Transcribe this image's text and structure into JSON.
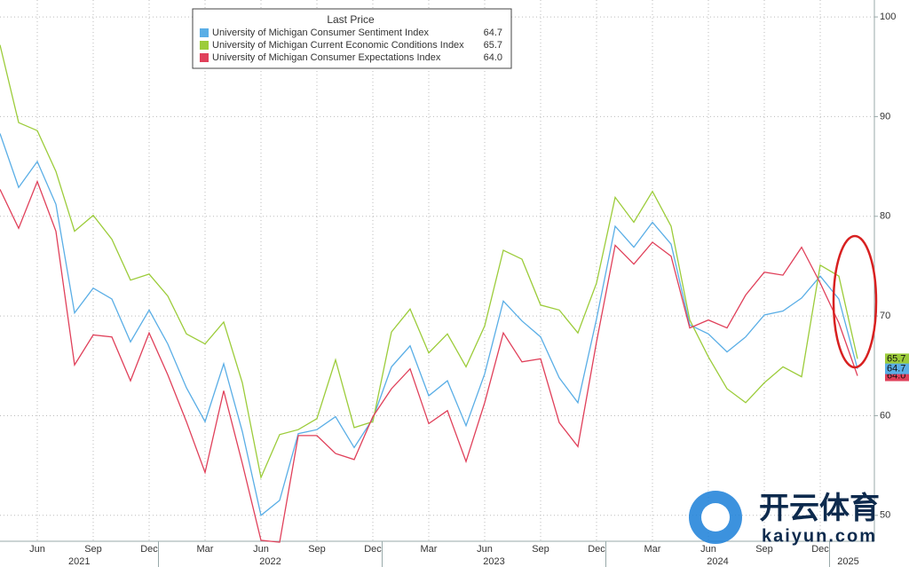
{
  "chart_data": {
    "type": "line",
    "legend": {
      "title": "Last Price",
      "position": "top"
    },
    "x": [
      "2021-04",
      "2021-05",
      "2021-06",
      "2021-07",
      "2021-08",
      "2021-09",
      "2021-10",
      "2021-11",
      "2021-12",
      "2022-01",
      "2022-02",
      "2022-03",
      "2022-04",
      "2022-05",
      "2022-06",
      "2022-07",
      "2022-08",
      "2022-09",
      "2022-10",
      "2022-11",
      "2022-12",
      "2023-01",
      "2023-02",
      "2023-03",
      "2023-04",
      "2023-05",
      "2023-06",
      "2023-07",
      "2023-08",
      "2023-09",
      "2023-10",
      "2023-11",
      "2023-12",
      "2024-01",
      "2024-02",
      "2024-03",
      "2024-04",
      "2024-05",
      "2024-06",
      "2024-07",
      "2024-08",
      "2024-09",
      "2024-10",
      "2024-11",
      "2024-12",
      "2025-01",
      "2025-02"
    ],
    "xticks": [
      {
        "value": "2021-06",
        "label": "Jun"
      },
      {
        "value": "2021-09",
        "label": "Sep"
      },
      {
        "value": "2021-12",
        "label": "Dec"
      },
      {
        "value": "2022-03",
        "label": "Mar"
      },
      {
        "value": "2022-06",
        "label": "Jun"
      },
      {
        "value": "2022-09",
        "label": "Sep"
      },
      {
        "value": "2022-12",
        "label": "Dec"
      },
      {
        "value": "2023-03",
        "label": "Mar"
      },
      {
        "value": "2023-06",
        "label": "Jun"
      },
      {
        "value": "2023-09",
        "label": "Sep"
      },
      {
        "value": "2023-12",
        "label": "Dec"
      },
      {
        "value": "2024-03",
        "label": "Mar"
      },
      {
        "value": "2024-06",
        "label": "Jun"
      },
      {
        "value": "2024-09",
        "label": "Sep"
      },
      {
        "value": "2024-12",
        "label": "Dec"
      }
    ],
    "year_ticks": [
      "2021",
      "2022",
      "2023",
      "2024",
      "2025"
    ],
    "ylim": [
      47.4,
      101.7
    ],
    "yticks": [
      50,
      60,
      70,
      80,
      90,
      100
    ],
    "y_axis_side": "right",
    "grid": true,
    "series": [
      {
        "name": "University of Michigan Consumer Sentiment Index",
        "color": "#5aaee6",
        "last_price": {
          "value": 64.7,
          "label": "64.7"
        },
        "values": [
          88.3,
          82.9,
          85.5,
          81.2,
          70.3,
          72.8,
          71.7,
          67.4,
          70.6,
          67.2,
          62.8,
          59.4,
          65.2,
          58.4,
          50.0,
          51.5,
          58.2,
          58.6,
          59.9,
          56.8,
          59.7,
          64.9,
          67.0,
          62.0,
          63.5,
          59.0,
          64.2,
          71.5,
          69.5,
          67.9,
          63.8,
          61.3,
          69.7,
          79.0,
          76.9,
          79.4,
          77.2,
          69.1,
          68.2,
          66.4,
          67.9,
          70.1,
          70.5,
          71.8,
          74.0,
          71.7,
          64.7
        ]
      },
      {
        "name": "University of Michigan Current Economic Conditions Index",
        "color": "#9ccc3a",
        "last_price": {
          "value": 65.7,
          "label": "65.7"
        },
        "values": [
          97.2,
          89.4,
          88.6,
          84.5,
          78.5,
          80.1,
          77.7,
          73.6,
          74.2,
          72.0,
          68.2,
          67.2,
          69.4,
          63.3,
          53.8,
          58.1,
          58.6,
          59.7,
          65.6,
          58.8,
          59.4,
          68.4,
          70.7,
          66.3,
          68.2,
          64.9,
          69.0,
          76.6,
          75.7,
          71.1,
          70.6,
          68.3,
          73.3,
          81.9,
          79.4,
          82.5,
          79.0,
          69.6,
          65.9,
          62.7,
          61.3,
          63.3,
          64.9,
          63.9,
          75.1,
          74.0,
          65.7
        ]
      },
      {
        "name": "University of Michigan Consumer Expectations Index",
        "color": "#e0405a",
        "last_price": {
          "value": 64.0,
          "label": "64.0"
        },
        "values": [
          82.7,
          78.8,
          83.5,
          78.5,
          65.1,
          68.1,
          67.9,
          63.5,
          68.3,
          64.1,
          59.4,
          54.3,
          62.5,
          55.2,
          47.5,
          47.3,
          58.0,
          58.0,
          56.2,
          55.6,
          59.9,
          62.7,
          64.7,
          59.2,
          60.5,
          55.4,
          61.3,
          68.3,
          65.4,
          65.7,
          59.3,
          56.9,
          67.4,
          77.1,
          75.2,
          77.4,
          76.0,
          68.8,
          69.6,
          68.8,
          72.1,
          74.4,
          74.1,
          76.9,
          73.3,
          69.3,
          64.0
        ]
      }
    ]
  },
  "watermark": {
    "brand": "开云体育",
    "url": "kaiyun.com"
  }
}
